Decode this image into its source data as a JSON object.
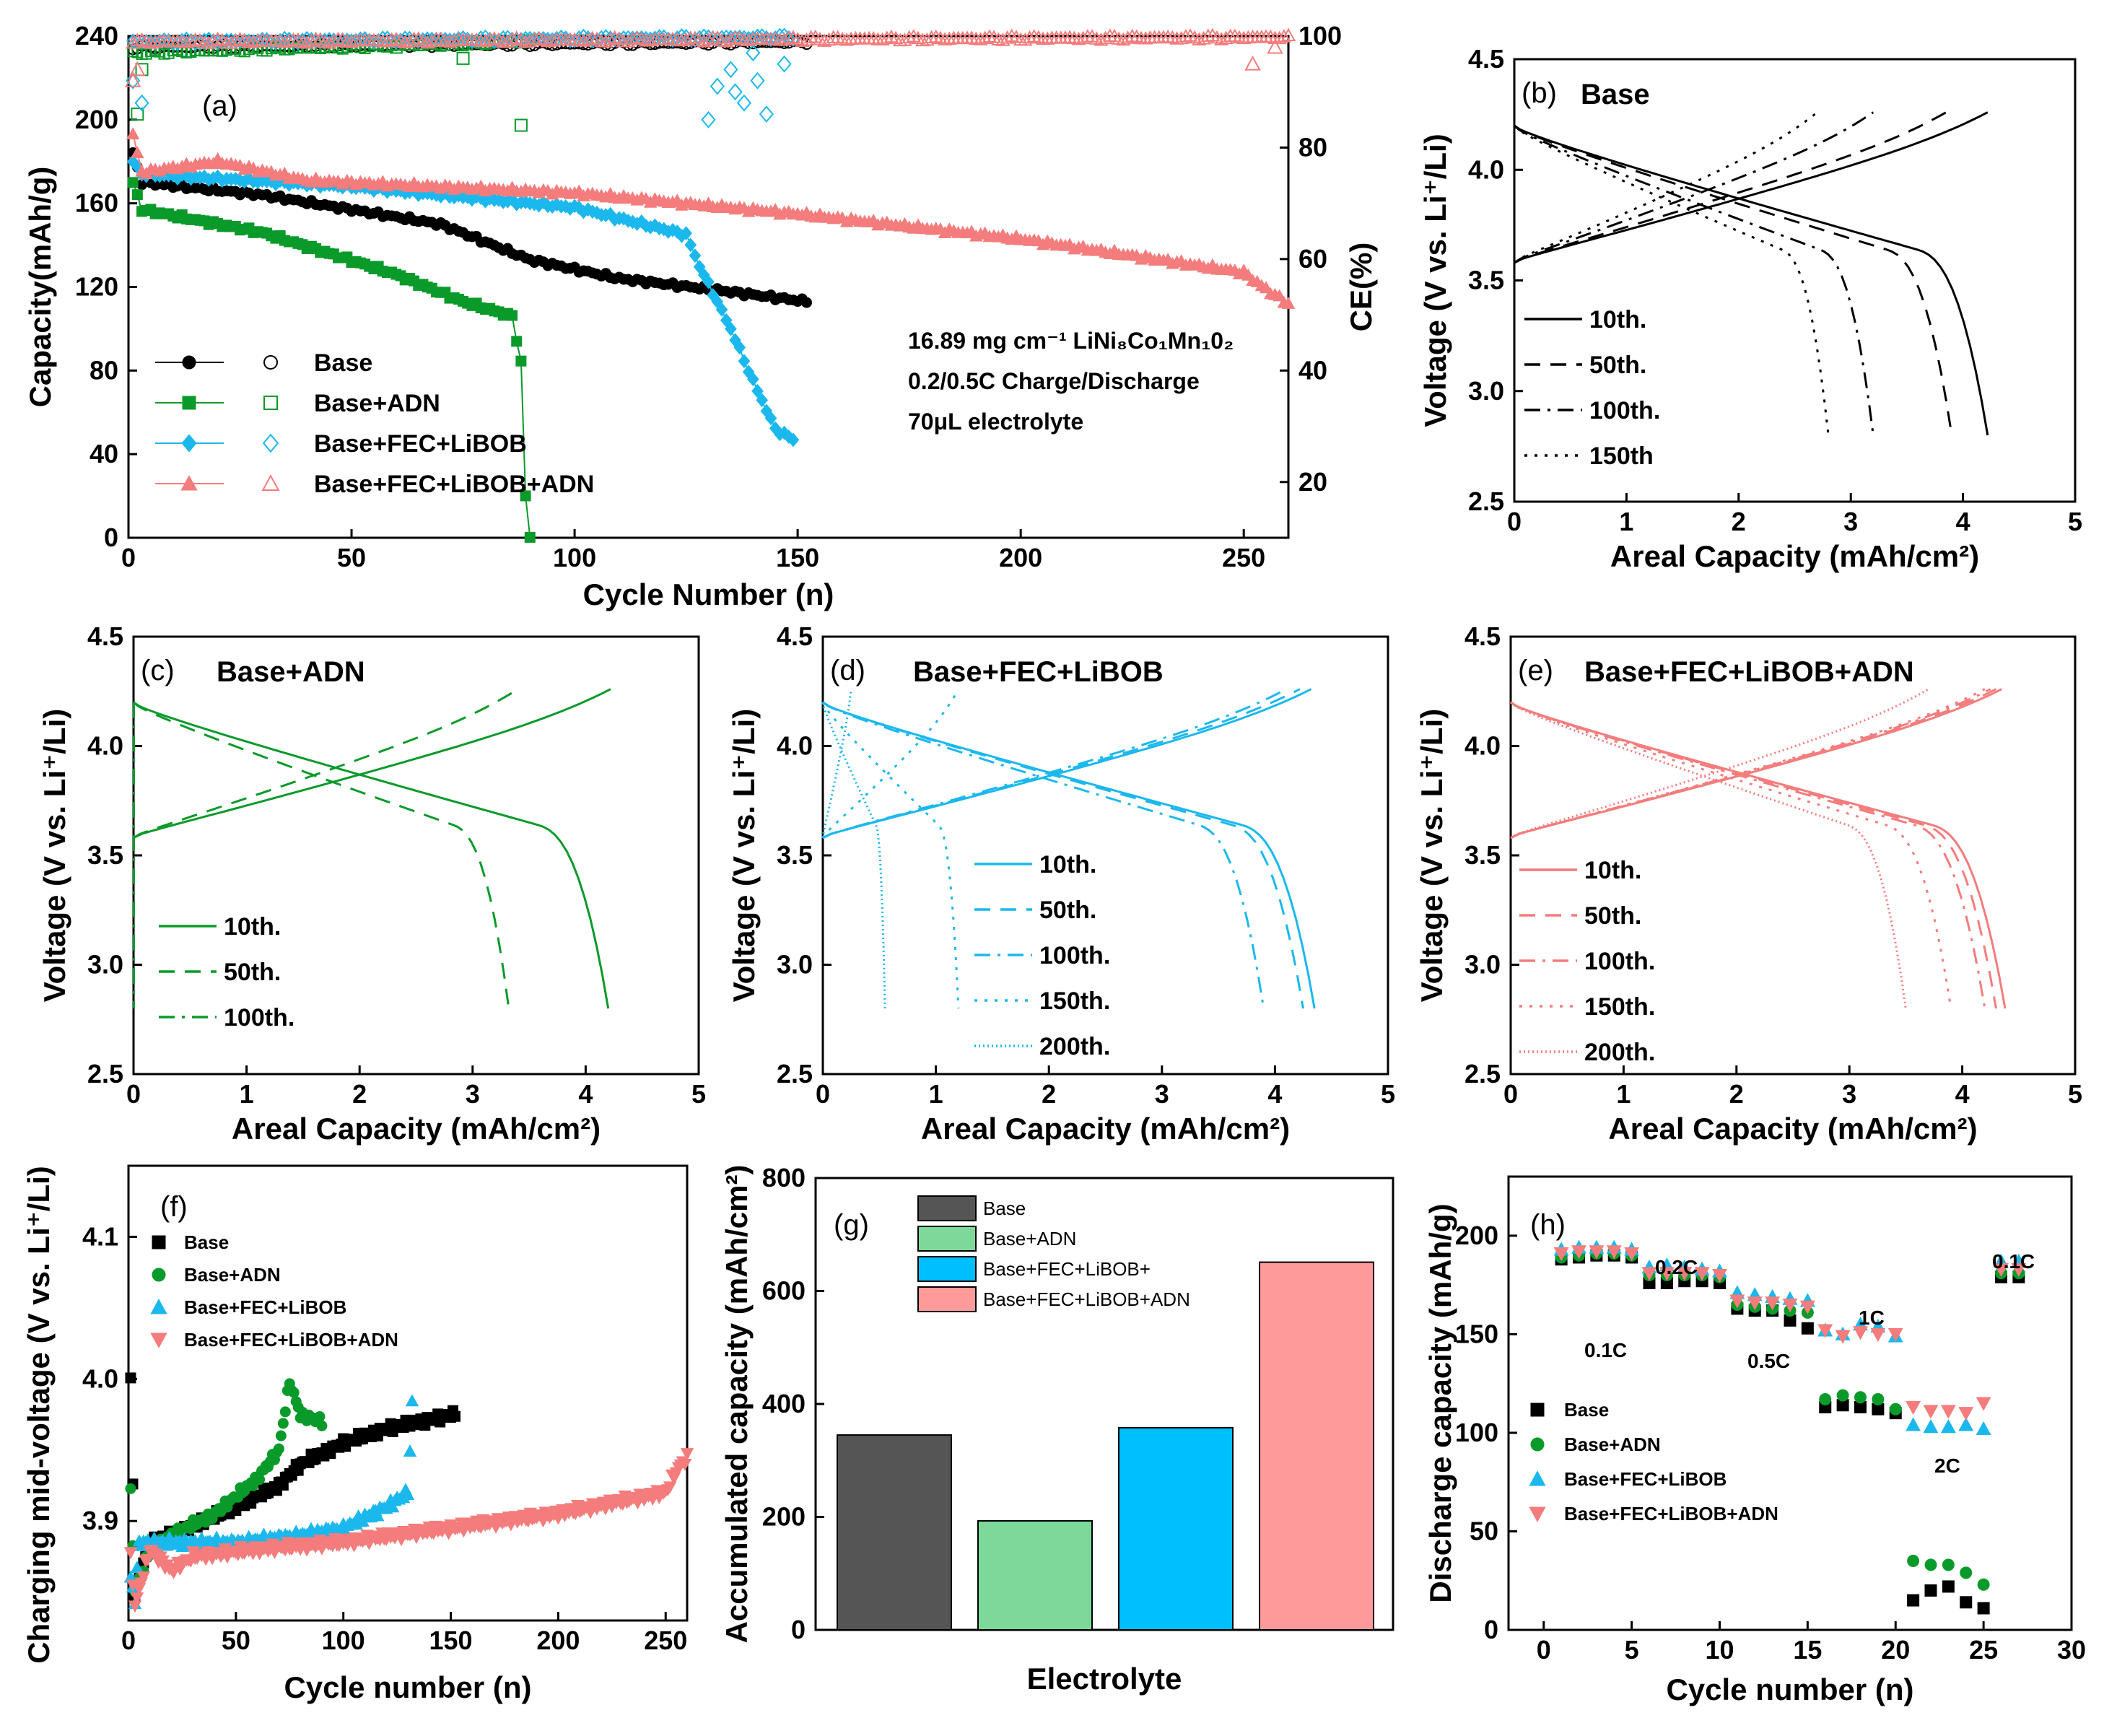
{
  "colors": {
    "base": "#000000",
    "adn": "#0a9a2a",
    "fec_libob": "#1bb8ee",
    "fec_libob_adn": "#f47c7c",
    "bar_base": "#555555",
    "bar_adn": "#7dd99a",
    "bar_fec": "#00bfff",
    "bar_all": "#ff9a9a"
  },
  "chart_data": [
    {
      "panel": "(a)",
      "type": "scatter",
      "xlabel": "Cycle Number (n)",
      "ylabel": "Capacity(mAh/g)",
      "y2label": "CE(%)",
      "xlim": [
        0,
        260
      ],
      "ylim": [
        0,
        240
      ],
      "y2lim": [
        10,
        100
      ],
      "xticks": [
        0,
        50,
        100,
        150,
        200,
        250
      ],
      "yticks": [
        0,
        40,
        80,
        120,
        160,
        200,
        240
      ],
      "y2ticks": [
        20,
        40,
        60,
        80,
        100
      ],
      "annotations": [
        "16.89 mg cm⁻¹ LiNi₈Co₁Mn₁0₂",
        "0.2/0.5C Charge/Discharge",
        "70μL electrolyte"
      ],
      "legend": [
        "Base",
        "Base+ADN",
        "Base+FEC+LiBOB",
        "Base+FEC+LiBOB+ADN"
      ],
      "series": [
        {
          "name": "Base",
          "color_key": "base",
          "marker": "circle",
          "last_cycle": 152,
          "capacity_knots": [
            [
              1,
              184
            ],
            [
              3,
              170
            ],
            [
              30,
              164
            ],
            [
              70,
              150
            ],
            [
              90,
              133
            ],
            [
              110,
              124
            ],
            [
              130,
              119
            ],
            [
              152,
              113
            ]
          ],
          "ce_knots": [
            [
              1,
              98
            ],
            [
              260,
              99.6
            ]
          ]
        },
        {
          "name": "Base+ADN",
          "color_key": "adn",
          "marker": "square",
          "last_cycle": 90,
          "capacity_knots": [
            [
              1,
              170
            ],
            [
              3,
              157
            ],
            [
              30,
              146
            ],
            [
              60,
              126
            ],
            [
              75,
              113
            ],
            [
              86,
              106
            ],
            [
              88,
              84
            ],
            [
              89,
              20
            ],
            [
              90,
              0
            ]
          ],
          "ce_knots": [
            [
              1,
              97
            ],
            [
              89,
              99
            ]
          ],
          "ce_outliers": [
            [
              2,
              86
            ],
            [
              3,
              94
            ],
            [
              88,
              84
            ],
            [
              75,
              96
            ],
            [
              60,
              98
            ]
          ]
        },
        {
          "name": "Base+FEC+LiBOB",
          "color_key": "fec_libob",
          "marker": "diamond",
          "last_cycle": 149,
          "capacity_knots": [
            [
              1,
              180
            ],
            [
              3,
              174
            ],
            [
              50,
              168
            ],
            [
              100,
              158
            ],
            [
              125,
              145
            ],
            [
              128,
              130
            ],
            [
              135,
              100
            ],
            [
              140,
              75
            ],
            [
              145,
              52
            ],
            [
              149,
              47
            ]
          ],
          "ce_knots": [
            [
              1,
              99
            ],
            [
              149,
              99.8
            ]
          ],
          "ce_outliers": [
            [
              1,
              92
            ],
            [
              3,
              88
            ],
            [
              130,
              85
            ],
            [
              132,
              91
            ],
            [
              135,
              94
            ],
            [
              140,
              97
            ],
            [
              143,
              86
            ],
            [
              147,
              95
            ],
            [
              136,
              90
            ],
            [
              141,
              92
            ],
            [
              138,
              88
            ]
          ]
        },
        {
          "name": "Base+FEC+LiBOB+ADN",
          "color_key": "fec_libob_adn",
          "marker": "triangle",
          "last_cycle": 260,
          "capacity_knots": [
            [
              1,
              193
            ],
            [
              3,
              175
            ],
            [
              20,
              180
            ],
            [
              40,
              171
            ],
            [
              100,
              165
            ],
            [
              150,
              155
            ],
            [
              200,
              143
            ],
            [
              250,
              127
            ],
            [
              255,
              119
            ],
            [
              260,
              112
            ]
          ],
          "ce_knots": [
            [
              1,
              99
            ],
            [
              260,
              99.8
            ]
          ],
          "ce_outliers": [
            [
              1,
              92
            ],
            [
              2,
              94
            ],
            [
              252,
              95
            ],
            [
              257,
              98
            ]
          ]
        }
      ]
    },
    {
      "panel": "(b)",
      "title": "Base",
      "type": "line",
      "xlabel": "Areal Capacity (mAh/cm²)",
      "ylabel": "Voltage (V vs. Li⁺/Li)",
      "xlim": [
        0,
        5
      ],
      "ylim": [
        2.5,
        4.5
      ],
      "xticks": [
        0,
        1,
        2,
        3,
        4,
        5
      ],
      "yticks": [
        2.5,
        3.0,
        3.5,
        4.0,
        4.5
      ],
      "color_key": "base",
      "series": [
        {
          "name": "10th.",
          "dash": "solid",
          "charge_end": 4.22,
          "discharge_end": 4.22
        },
        {
          "name": "50th.",
          "dash": "dashed",
          "charge_end": 3.85,
          "discharge_end": 3.9
        },
        {
          "name": "100th.",
          "dash": "dashdot",
          "charge_end": 3.2,
          "discharge_end": 3.2
        },
        {
          "name": "150th",
          "dash": "dotted",
          "charge_end": 2.7,
          "discharge_end": 2.8
        }
      ]
    },
    {
      "panel": "(c)",
      "title": "Base+ADN",
      "type": "line",
      "xlabel": "Areal Capacity (mAh/cm²)",
      "ylabel": "Voltage (V vs. Li⁺/Li)",
      "xlim": [
        0,
        5
      ],
      "ylim": [
        2.5,
        4.5
      ],
      "xticks": [
        0,
        1,
        2,
        3,
        4,
        5
      ],
      "yticks": [
        2.5,
        3.0,
        3.5,
        4.0,
        4.5
      ],
      "color_key": "adn",
      "series": [
        {
          "name": "10th.",
          "dash": "solid",
          "charge_end": 4.22,
          "discharge_end": 4.2
        },
        {
          "name": "50th.",
          "dash": "dashed",
          "charge_end": 3.4,
          "discharge_end": 3.32
        },
        {
          "name": "100th.",
          "dash": "dashdot",
          "charge_end": 0.0,
          "discharge_end": 0.0
        }
      ]
    },
    {
      "panel": "(d)",
      "title": "Base+FEC+LiBOB",
      "type": "line",
      "xlabel": "Areal Capacity (mAh/cm²)",
      "ylabel": "Voltage (V vs. Li⁺/Li)",
      "xlim": [
        0,
        5
      ],
      "ylim": [
        2.5,
        4.5
      ],
      "xticks": [
        0,
        1,
        2,
        3,
        4,
        5
      ],
      "yticks": [
        2.5,
        3.0,
        3.5,
        4.0,
        4.5
      ],
      "color_key": "fec_libob",
      "series": [
        {
          "name": "10th.",
          "dash": "solid",
          "charge_end": 4.32,
          "discharge_end": 4.35
        },
        {
          "name": "50th.",
          "dash": "dashed",
          "charge_end": 4.22,
          "discharge_end": 4.25
        },
        {
          "name": "100th.",
          "dash": "dashdot",
          "charge_end": 4.1,
          "discharge_end": 3.9
        },
        {
          "name": "150th.",
          "dash": "dotted",
          "charge_end": 1.2,
          "discharge_end": 1.2
        },
        {
          "name": "200th.",
          "dash": "fine",
          "charge_end": 0.25,
          "discharge_end": 0.55
        }
      ]
    },
    {
      "panel": "(e)",
      "title": "Base+FEC+LiBOB+ADN",
      "type": "line",
      "xlabel": "Areal Capacity (mAh/cm²)",
      "ylabel": "Voltage (V vs. Li⁺/Li)",
      "xlim": [
        0,
        5
      ],
      "ylim": [
        2.5,
        4.5
      ],
      "xticks": [
        0,
        1,
        2,
        3,
        4,
        5
      ],
      "yticks": [
        2.5,
        3.0,
        3.5,
        4.0,
        4.5
      ],
      "color_key": "fec_libob_adn",
      "series": [
        {
          "name": "10th.",
          "dash": "solid",
          "charge_end": 4.35,
          "discharge_end": 4.38
        },
        {
          "name": "50th.",
          "dash": "dashed",
          "charge_end": 4.3,
          "discharge_end": 4.3
        },
        {
          "name": "100th.",
          "dash": "dashdot",
          "charge_end": 4.25,
          "discharge_end": 4.2
        },
        {
          "name": "150th.",
          "dash": "dotted",
          "charge_end": 4.2,
          "discharge_end": 3.9
        },
        {
          "name": "200th.",
          "dash": "fine",
          "charge_end": 3.7,
          "discharge_end": 3.5
        }
      ]
    },
    {
      "panel": "(f)",
      "type": "scatter",
      "xlabel": "Cycle number (n)",
      "ylabel": "Charging mid-voltage (V vs. Li⁺/Li)",
      "xlim": [
        0,
        260
      ],
      "ylim": [
        3.83,
        4.15
      ],
      "xticks": [
        0,
        50,
        100,
        150,
        200,
        250
      ],
      "yticks": [
        3.9,
        4.0,
        4.1
      ],
      "legend": [
        "Base",
        "Base+ADN",
        "Base+FEC+LiBOB",
        "Base+FEC+LiBOB+ADN"
      ],
      "series": [
        {
          "name": "Base",
          "color_key": "base",
          "marker": "square",
          "last_cycle": 152,
          "knots": [
            [
              1,
              4.0
            ],
            [
              3,
              3.85
            ],
            [
              10,
              3.885
            ],
            [
              20,
              3.89
            ],
            [
              50,
              3.91
            ],
            [
              70,
              3.925
            ],
            [
              80,
              3.94
            ],
            [
              100,
              3.955
            ],
            [
              120,
              3.965
            ],
            [
              152,
              3.975
            ]
          ]
        },
        {
          "name": "Base+ADN",
          "color_key": "adn",
          "marker": "circle",
          "last_cycle": 90,
          "knots": [
            [
              1,
              3.92
            ],
            [
              3,
              3.85
            ],
            [
              10,
              3.88
            ],
            [
              20,
              3.89
            ],
            [
              40,
              3.905
            ],
            [
              60,
              3.93
            ],
            [
              70,
              3.95
            ],
            [
              75,
              3.998
            ],
            [
              80,
              3.975
            ],
            [
              90,
              3.97
            ]
          ]
        },
        {
          "name": "Base+FEC+LiBOB",
          "color_key": "fec_libob",
          "marker": "triangle",
          "last_cycle": 132,
          "knots": [
            [
              1,
              3.86
            ],
            [
              3,
              3.845
            ],
            [
              5,
              3.885
            ],
            [
              50,
              3.885
            ],
            [
              80,
              3.89
            ],
            [
              100,
              3.895
            ],
            [
              120,
              3.91
            ],
            [
              130,
              3.92
            ],
            [
              132,
              3.982
            ]
          ]
        },
        {
          "name": "Base+FEC+LiBOB+ADN",
          "color_key": "fec_libob_adn",
          "marker": "triangle-down",
          "last_cycle": 260,
          "knots": [
            [
              1,
              3.875
            ],
            [
              3,
              3.84
            ],
            [
              10,
              3.88
            ],
            [
              20,
              3.865
            ],
            [
              30,
              3.875
            ],
            [
              60,
              3.88
            ],
            [
              100,
              3.885
            ],
            [
              150,
              3.895
            ],
            [
              200,
              3.905
            ],
            [
              250,
              3.92
            ],
            [
              255,
              3.935
            ],
            [
              260,
              3.945
            ]
          ]
        }
      ]
    },
    {
      "panel": "(g)",
      "type": "bar",
      "xlabel": "Electrolyte",
      "ylabel": "Accumulated capacity (mAh/cm²)",
      "ylim": [
        0,
        800
      ],
      "yticks": [
        0,
        200,
        400,
        600,
        800
      ],
      "categories": [
        "Base",
        "Base+ADN",
        "Base+FEC+LiBOB+",
        "Base+FEC+LiBOB+ADN"
      ],
      "values": [
        345,
        193,
        358,
        651
      ],
      "color_keys": [
        "bar_base",
        "bar_adn",
        "bar_fec",
        "bar_all"
      ]
    },
    {
      "panel": "(h)",
      "type": "scatter",
      "xlabel": "Cycle number (n)",
      "ylabel": "Discharge capacity (mAh/g)",
      "xlim": [
        -2,
        30
      ],
      "ylim": [
        0,
        230
      ],
      "xticks": [
        0,
        5,
        10,
        15,
        20,
        25,
        30
      ],
      "yticks": [
        0,
        50,
        100,
        150,
        200
      ],
      "rate_labels": [
        "0.1C",
        "0.2C",
        "0.5C",
        "1C",
        "2C",
        "0.1C"
      ],
      "legend": [
        "Base",
        "Base+ADN",
        "Base+FEC+LiBOB",
        "Base+FEC+LiBOB+ADN"
      ],
      "series": [
        {
          "name": "Base",
          "color_key": "base",
          "marker": "square",
          "values": [
            188,
            189,
            190,
            190,
            189,
            176,
            176,
            177,
            177,
            176,
            163,
            162,
            162,
            157,
            153,
            113,
            114,
            113,
            112,
            110,
            15,
            20,
            22,
            14,
            11,
            179,
            179
          ]
        },
        {
          "name": "Base+ADN",
          "color_key": "adn",
          "marker": "circle",
          "values": [
            189,
            190,
            191,
            191,
            190,
            180,
            180,
            180,
            180,
            179,
            165,
            164,
            163,
            162,
            161,
            117,
            119,
            118,
            117,
            112,
            35,
            33,
            33,
            29,
            23,
            181,
            181
          ]
        },
        {
          "name": "Base+FEC+LiBOB",
          "color_key": "fec_libob",
          "marker": "triangle",
          "values": [
            193,
            194,
            194,
            194,
            193,
            184,
            185,
            184,
            183,
            182,
            171,
            170,
            169,
            168,
            167,
            152,
            150,
            155,
            154,
            149,
            104,
            103,
            103,
            104,
            102,
            187,
            187
          ]
        },
        {
          "name": "Base+FEC+LiBOB+ADN",
          "color_key": "fec_libob_adn",
          "marker": "triangle-down",
          "values": [
            191,
            192,
            192,
            192,
            191,
            181,
            181,
            181,
            181,
            180,
            167,
            166,
            166,
            165,
            164,
            152,
            149,
            151,
            150,
            150,
            113,
            111,
            111,
            110,
            115,
            183,
            183
          ]
        }
      ]
    }
  ]
}
